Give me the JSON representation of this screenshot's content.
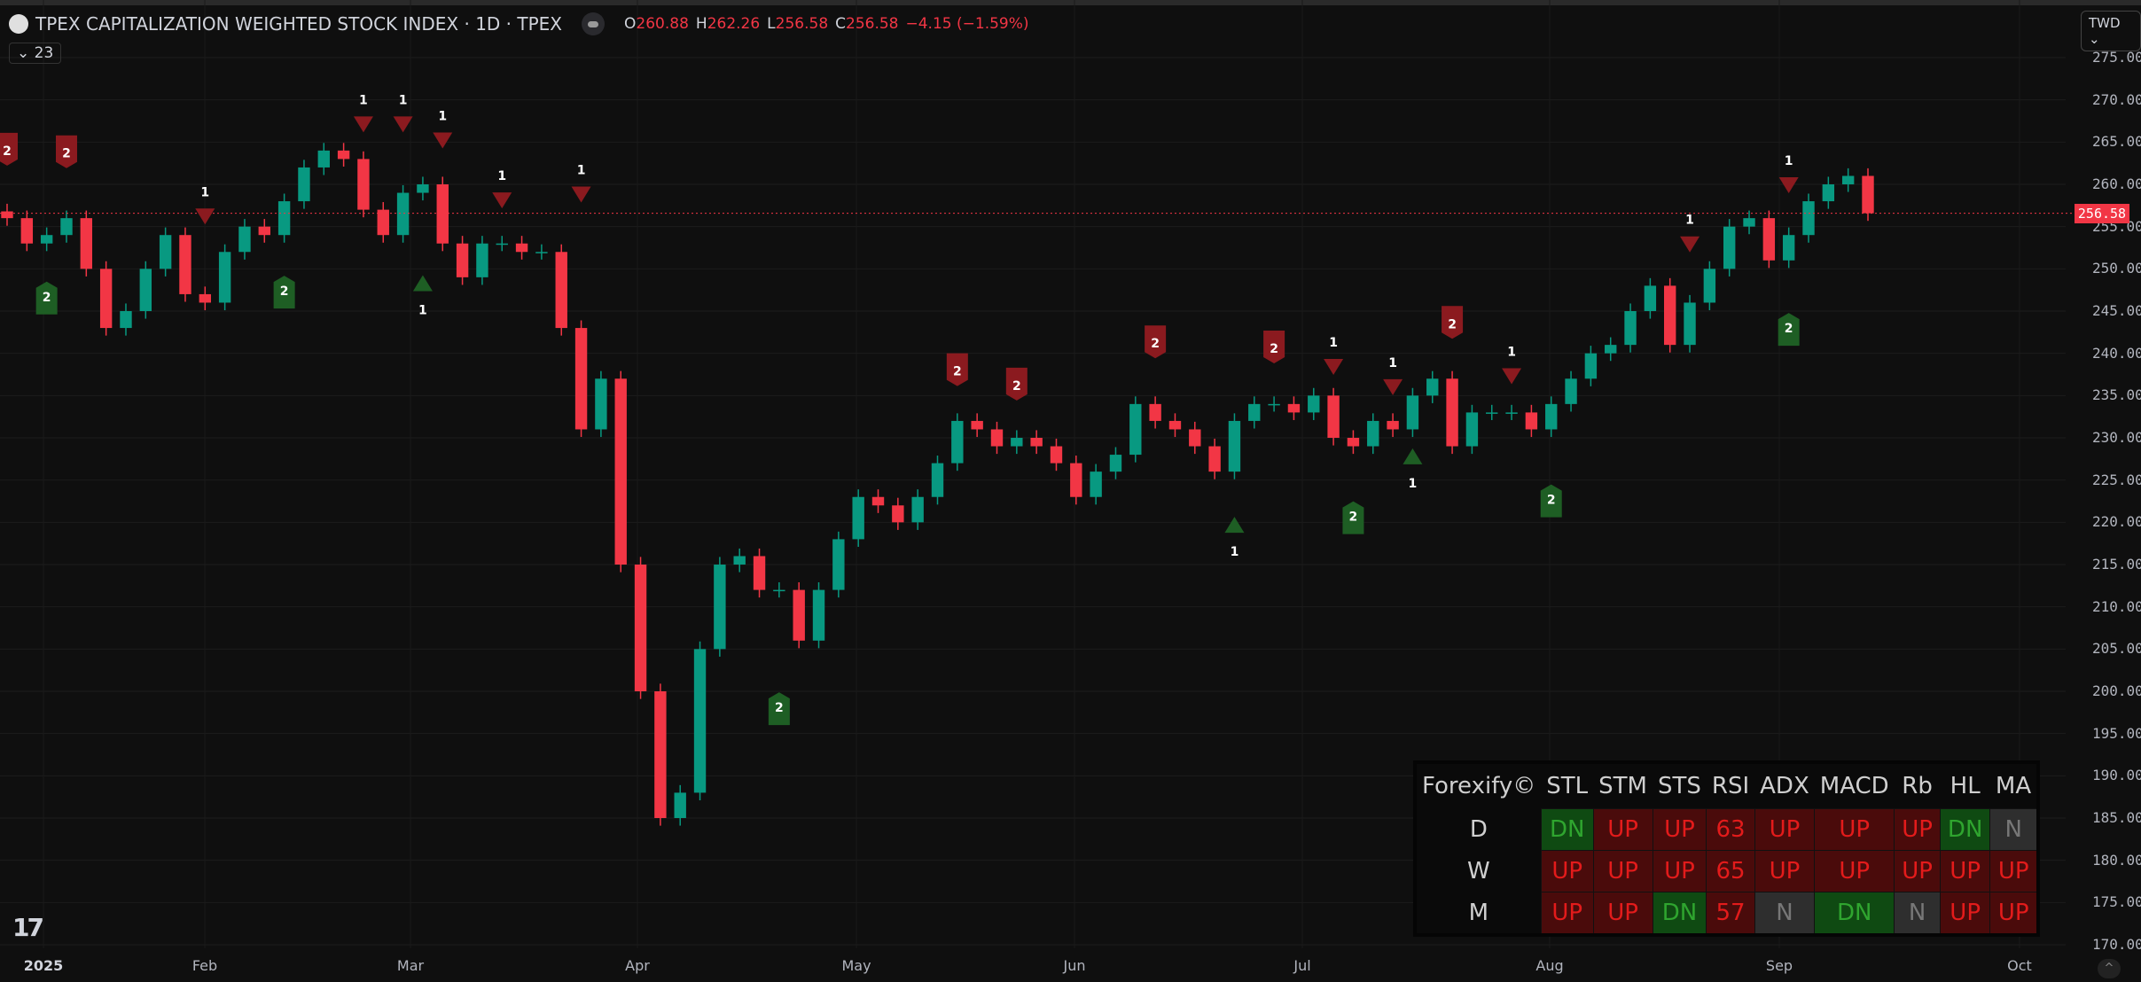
{
  "header": {
    "title": "TPEX CAPITALIZATION WEIGHTED STOCK INDEX · 1D · TPEX",
    "ohlc": {
      "o_label": "O",
      "o": "260.88",
      "h_label": "H",
      "h": "262.26",
      "l_label": "L",
      "l": "256.58",
      "c_label": "C",
      "c": "256.58",
      "change": "−4.15 (−1.59%)"
    },
    "collapse_label": "23",
    "currency": "TWD"
  },
  "price_axis": {
    "labels": [
      "275.00",
      "270.00",
      "265.00",
      "260.00",
      "255.00",
      "250.00",
      "245.00",
      "240.00",
      "235.00",
      "230.00",
      "225.00",
      "220.00",
      "215.00",
      "210.00",
      "205.00",
      "200.00",
      "195.00",
      "190.00",
      "185.00",
      "180.00",
      "175.00",
      "170.00"
    ],
    "last_price": "256.58"
  },
  "time_axis": {
    "labels": [
      "2025",
      "Feb",
      "Mar",
      "Apr",
      "May",
      "Jun",
      "Jul",
      "Aug",
      "Sep",
      "Oct"
    ]
  },
  "colors": {
    "up": "#089981",
    "down": "#f23645",
    "marker_red": "#8b1a1f",
    "marker_green": "#1e5e24",
    "background": "#0f0f0f"
  },
  "chart_data": {
    "type": "candlestick",
    "ylim": [
      170,
      275
    ],
    "close": [
      256,
      253,
      254,
      256,
      250,
      243,
      245,
      250,
      254,
      247,
      246,
      252,
      255,
      254,
      258,
      262,
      264,
      263,
      257,
      254,
      259,
      260,
      253,
      249,
      253,
      253,
      252,
      252,
      243,
      231,
      237,
      215,
      200,
      185,
      188,
      205,
      215,
      216,
      212,
      212,
      206,
      212,
      218,
      223,
      222,
      220,
      223,
      227,
      232,
      231,
      229,
      230,
      229,
      227,
      223,
      226,
      228,
      234,
      232,
      231,
      229,
      226,
      232,
      234,
      234,
      233,
      235,
      230,
      229,
      232,
      231,
      235,
      237,
      229,
      233,
      233,
      233,
      231,
      234,
      237,
      240,
      241,
      245,
      248,
      241,
      246,
      250,
      255,
      256,
      251,
      254,
      258,
      260,
      261,
      256.58
    ],
    "markers": [
      {
        "kind": "sell",
        "label": "1",
        "candle": 18,
        "price": 267.2
      },
      {
        "kind": "sell",
        "label": "1",
        "candle": 20,
        "price": 267.2
      },
      {
        "kind": "sell",
        "label": "1",
        "candle": 22,
        "price": 265.3
      },
      {
        "kind": "sell",
        "label": "1",
        "candle": 25,
        "price": 258.2
      },
      {
        "kind": "sell",
        "label": "1",
        "candle": 29,
        "price": 258.9
      },
      {
        "kind": "sell",
        "label": "1",
        "candle": 10,
        "price": 256.3
      },
      {
        "kind": "sell",
        "label": "1",
        "candle": 67,
        "price": 238.5
      },
      {
        "kind": "sell",
        "label": "1",
        "candle": 70,
        "price": 236.1
      },
      {
        "kind": "sell",
        "label": "1",
        "candle": 76,
        "price": 237.4
      },
      {
        "kind": "sell",
        "label": "1",
        "candle": 85,
        "price": 253.0
      },
      {
        "kind": "sell",
        "label": "1",
        "candle": 90,
        "price": 260.0
      },
      {
        "kind": "sell2",
        "label": "2",
        "candle": 0,
        "price": 264.0
      },
      {
        "kind": "sell2",
        "label": "2",
        "candle": 3,
        "price": 263.7
      },
      {
        "kind": "sell2",
        "label": "2",
        "candle": 48,
        "price": 237.9
      },
      {
        "kind": "sell2",
        "label": "2",
        "candle": 51,
        "price": 236.2
      },
      {
        "kind": "sell2",
        "label": "2",
        "candle": 58,
        "price": 241.2
      },
      {
        "kind": "sell2",
        "label": "2",
        "candle": 64,
        "price": 240.6
      },
      {
        "kind": "sell2",
        "label": "2",
        "candle": 73,
        "price": 243.5
      },
      {
        "kind": "buy",
        "label": "1",
        "candle": 21,
        "price": 248.2
      },
      {
        "kind": "buy",
        "label": "1",
        "candle": 62,
        "price": 219.6
      },
      {
        "kind": "buy",
        "label": "1",
        "candle": 71,
        "price": 227.7
      },
      {
        "kind": "buy2",
        "label": "2",
        "candle": 2,
        "price": 246.7
      },
      {
        "kind": "buy2",
        "label": "2",
        "candle": 14,
        "price": 247.4
      },
      {
        "kind": "buy2",
        "label": "2",
        "candle": 39,
        "price": 198.1
      },
      {
        "kind": "buy2",
        "label": "2",
        "candle": 68,
        "price": 220.7
      },
      {
        "kind": "buy2",
        "label": "2",
        "candle": 78,
        "price": 222.7
      },
      {
        "kind": "buy2",
        "label": "2",
        "candle": 90,
        "price": 243.0
      }
    ]
  },
  "dashboard": {
    "brand": "Forexify©",
    "columns": [
      "STL",
      "STM",
      "STS",
      "RSI",
      "ADX",
      "MACD",
      "Rb",
      "HL",
      "MA"
    ],
    "rows": [
      {
        "tf": "D",
        "cells": [
          [
            "DN",
            "DN"
          ],
          [
            "UP",
            "UP"
          ],
          [
            "UP",
            "UP"
          ],
          [
            "63",
            "NUM"
          ],
          [
            "UP",
            "UP"
          ],
          [
            "UP",
            "UP"
          ],
          [
            "UP",
            "UP"
          ],
          [
            "DN",
            "DN"
          ],
          [
            "N",
            "N"
          ]
        ]
      },
      {
        "tf": "W",
        "cells": [
          [
            "UP",
            "UP"
          ],
          [
            "UP",
            "UP"
          ],
          [
            "UP",
            "UP"
          ],
          [
            "65",
            "NUM"
          ],
          [
            "UP",
            "UP"
          ],
          [
            "UP",
            "UP"
          ],
          [
            "UP",
            "UP"
          ],
          [
            "UP",
            "UP"
          ],
          [
            "UP",
            "UP"
          ]
        ]
      },
      {
        "tf": "M",
        "cells": [
          [
            "UP",
            "UP"
          ],
          [
            "UP",
            "UP"
          ],
          [
            "DN",
            "DN"
          ],
          [
            "57",
            "NUM"
          ],
          [
            "N",
            "N"
          ],
          [
            "DN",
            "DN"
          ],
          [
            "N",
            "N"
          ],
          [
            "UP",
            "UP"
          ],
          [
            "UP",
            "UP"
          ]
        ]
      }
    ]
  }
}
